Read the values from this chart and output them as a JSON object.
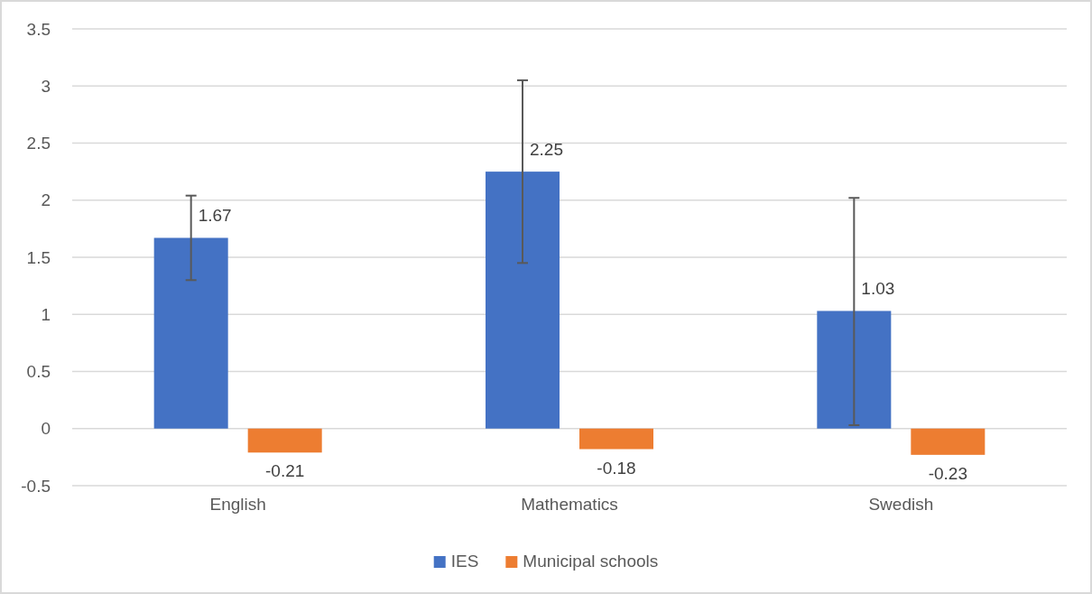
{
  "chart_data": {
    "type": "bar",
    "categories": [
      "English",
      "Mathematics",
      "Swedish"
    ],
    "series": [
      {
        "name": "IES",
        "color": "#4472c4",
        "values": [
          1.67,
          2.25,
          1.03
        ],
        "errors": [
          [
            1.3,
            2.04
          ],
          [
            1.45,
            3.05
          ],
          [
            0.03,
            2.02
          ]
        ]
      },
      {
        "name": "Municipal schools",
        "color": "#ed7d31",
        "values": [
          -0.21,
          -0.18,
          -0.23
        ]
      }
    ],
    "ylim": [
      -0.5,
      3.5
    ],
    "yticks": [
      -0.5,
      0,
      0.5,
      1,
      1.5,
      2,
      2.5,
      3,
      3.5
    ],
    "grid": "y",
    "legend": "bottom",
    "data_labels": true
  }
}
